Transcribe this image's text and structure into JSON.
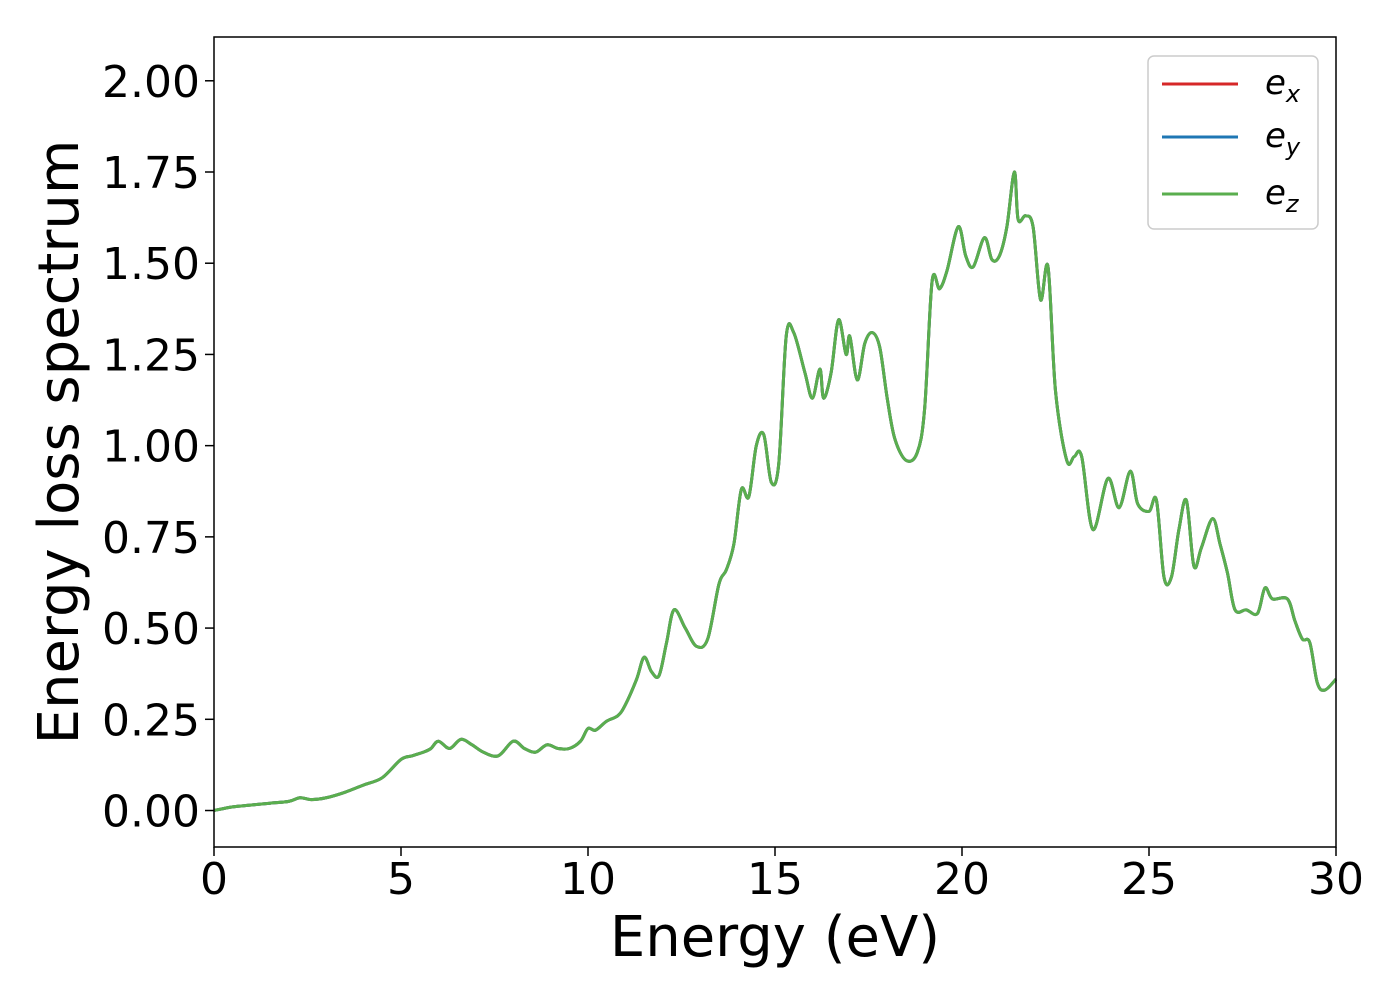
{
  "chart_data": {
    "type": "line",
    "xlabel": "Energy (eV)",
    "ylabel": "Energy loss spectrum",
    "xlim": [
      0,
      30
    ],
    "ylim": [
      -0.1,
      2.12
    ],
    "xticks": [
      0,
      5,
      10,
      15,
      20,
      25,
      30
    ],
    "xtick_labels": [
      "0",
      "5",
      "10",
      "15",
      "20",
      "25",
      "30"
    ],
    "yticks": [
      0.0,
      0.25,
      0.5,
      0.75,
      1.0,
      1.25,
      1.5,
      1.75,
      2.0
    ],
    "ytick_labels": [
      "0.00",
      "0.25",
      "0.50",
      "0.75",
      "1.00",
      "1.25",
      "1.50",
      "1.75",
      "2.00"
    ],
    "grid": false,
    "legend_position": "top-right",
    "x": [
      0,
      0.5,
      1,
      1.5,
      2,
      2.3,
      2.6,
      3,
      3.5,
      4,
      4.5,
      5,
      5.3,
      5.6,
      5.8,
      6,
      6.3,
      6.6,
      6.9,
      7.2,
      7.6,
      8,
      8.3,
      8.6,
      8.9,
      9.2,
      9.5,
      9.8,
      10,
      10.2,
      10.5,
      10.8,
      11,
      11.3,
      11.5,
      11.7,
      11.9,
      12.1,
      12.3,
      12.6,
      12.9,
      13.2,
      13.5,
      13.7,
      13.9,
      14.1,
      14.3,
      14.5,
      14.7,
      14.9,
      15.1,
      15.3,
      15.5,
      15.8,
      16,
      16.2,
      16.3,
      16.5,
      16.7,
      16.9,
      17,
      17.2,
      17.4,
      17.6,
      17.8,
      18,
      18.2,
      18.5,
      18.8,
      19,
      19.2,
      19.4,
      19.6,
      19.9,
      20.1,
      20.3,
      20.6,
      20.8,
      21,
      21.2,
      21.4,
      21.5,
      21.7,
      21.9,
      22.1,
      22.3,
      22.5,
      22.8,
      23,
      23.2,
      23.5,
      23.9,
      24.2,
      24.5,
      24.7,
      25,
      25.2,
      25.4,
      25.6,
      25.8,
      26,
      26.2,
      26.4,
      26.7,
      26.9,
      27.1,
      27.3,
      27.6,
      27.9,
      28.1,
      28.3,
      28.7,
      28.9,
      29.1,
      29.3,
      29.5,
      29.7,
      30
    ],
    "series": [
      {
        "name": "e_x",
        "legend_label": "e",
        "legend_sub": "x",
        "color": "#d62728",
        "values": [
          0,
          0.01,
          0.015,
          0.02,
          0.025,
          0.035,
          0.03,
          0.035,
          0.05,
          0.07,
          0.09,
          0.14,
          0.15,
          0.16,
          0.17,
          0.19,
          0.17,
          0.195,
          0.18,
          0.16,
          0.15,
          0.19,
          0.17,
          0.16,
          0.18,
          0.17,
          0.17,
          0.19,
          0.225,
          0.22,
          0.245,
          0.26,
          0.29,
          0.36,
          0.42,
          0.38,
          0.37,
          0.46,
          0.55,
          0.5,
          0.45,
          0.47,
          0.62,
          0.66,
          0.73,
          0.88,
          0.86,
          1.0,
          1.03,
          0.9,
          0.95,
          1.3,
          1.31,
          1.2,
          1.13,
          1.21,
          1.13,
          1.2,
          1.345,
          1.25,
          1.3,
          1.18,
          1.28,
          1.31,
          1.27,
          1.13,
          1.02,
          0.96,
          0.98,
          1.1,
          1.45,
          1.43,
          1.48,
          1.6,
          1.52,
          1.49,
          1.57,
          1.51,
          1.52,
          1.6,
          1.75,
          1.62,
          1.63,
          1.6,
          1.4,
          1.49,
          1.15,
          0.96,
          0.97,
          0.97,
          0.77,
          0.91,
          0.83,
          0.93,
          0.84,
          0.82,
          0.85,
          0.64,
          0.64,
          0.77,
          0.85,
          0.67,
          0.72,
          0.8,
          0.73,
          0.65,
          0.55,
          0.55,
          0.54,
          0.61,
          0.58,
          0.58,
          0.52,
          0.47,
          0.46,
          0.35,
          0.33,
          0.36
        ]
      },
      {
        "name": "e_y",
        "legend_label": "e",
        "legend_sub": "y",
        "color": "#1f77b4",
        "values": [
          0,
          0.01,
          0.015,
          0.02,
          0.025,
          0.035,
          0.03,
          0.035,
          0.05,
          0.07,
          0.09,
          0.14,
          0.15,
          0.16,
          0.17,
          0.19,
          0.17,
          0.195,
          0.18,
          0.16,
          0.15,
          0.19,
          0.17,
          0.16,
          0.18,
          0.17,
          0.17,
          0.19,
          0.225,
          0.22,
          0.245,
          0.26,
          0.29,
          0.36,
          0.42,
          0.38,
          0.37,
          0.46,
          0.55,
          0.5,
          0.45,
          0.47,
          0.62,
          0.66,
          0.73,
          0.88,
          0.86,
          1.0,
          1.03,
          0.9,
          0.95,
          1.3,
          1.31,
          1.2,
          1.13,
          1.21,
          1.13,
          1.2,
          1.345,
          1.25,
          1.3,
          1.18,
          1.28,
          1.31,
          1.27,
          1.13,
          1.02,
          0.96,
          0.98,
          1.1,
          1.45,
          1.43,
          1.48,
          1.6,
          1.52,
          1.49,
          1.57,
          1.51,
          1.52,
          1.6,
          1.75,
          1.62,
          1.63,
          1.6,
          1.4,
          1.49,
          1.15,
          0.96,
          0.97,
          0.97,
          0.77,
          0.91,
          0.83,
          0.93,
          0.84,
          0.82,
          0.85,
          0.64,
          0.64,
          0.77,
          0.85,
          0.67,
          0.72,
          0.8,
          0.73,
          0.65,
          0.55,
          0.55,
          0.54,
          0.61,
          0.58,
          0.58,
          0.52,
          0.47,
          0.46,
          0.35,
          0.33,
          0.36
        ]
      },
      {
        "name": "e_z",
        "legend_label": "e",
        "legend_sub": "z",
        "color": "#5aae4e",
        "values": [
          0,
          0.01,
          0.015,
          0.02,
          0.025,
          0.035,
          0.03,
          0.035,
          0.05,
          0.07,
          0.09,
          0.14,
          0.15,
          0.16,
          0.17,
          0.19,
          0.17,
          0.195,
          0.18,
          0.16,
          0.15,
          0.19,
          0.17,
          0.16,
          0.18,
          0.17,
          0.17,
          0.19,
          0.225,
          0.22,
          0.245,
          0.26,
          0.29,
          0.36,
          0.42,
          0.38,
          0.37,
          0.46,
          0.55,
          0.5,
          0.45,
          0.47,
          0.62,
          0.66,
          0.73,
          0.88,
          0.86,
          1.0,
          1.03,
          0.9,
          0.95,
          1.3,
          1.31,
          1.2,
          1.13,
          1.21,
          1.13,
          1.2,
          1.345,
          1.25,
          1.3,
          1.18,
          1.28,
          1.31,
          1.27,
          1.13,
          1.02,
          0.96,
          0.98,
          1.1,
          1.45,
          1.43,
          1.48,
          1.6,
          1.52,
          1.49,
          1.57,
          1.51,
          1.52,
          1.6,
          1.75,
          1.62,
          1.63,
          1.6,
          1.4,
          1.49,
          1.15,
          0.96,
          0.97,
          0.97,
          0.77,
          0.91,
          0.83,
          0.93,
          0.84,
          0.82,
          0.85,
          0.64,
          0.64,
          0.77,
          0.85,
          0.67,
          0.72,
          0.8,
          0.73,
          0.65,
          0.55,
          0.55,
          0.54,
          0.61,
          0.58,
          0.58,
          0.52,
          0.47,
          0.46,
          0.35,
          0.33,
          0.36
        ]
      }
    ]
  }
}
